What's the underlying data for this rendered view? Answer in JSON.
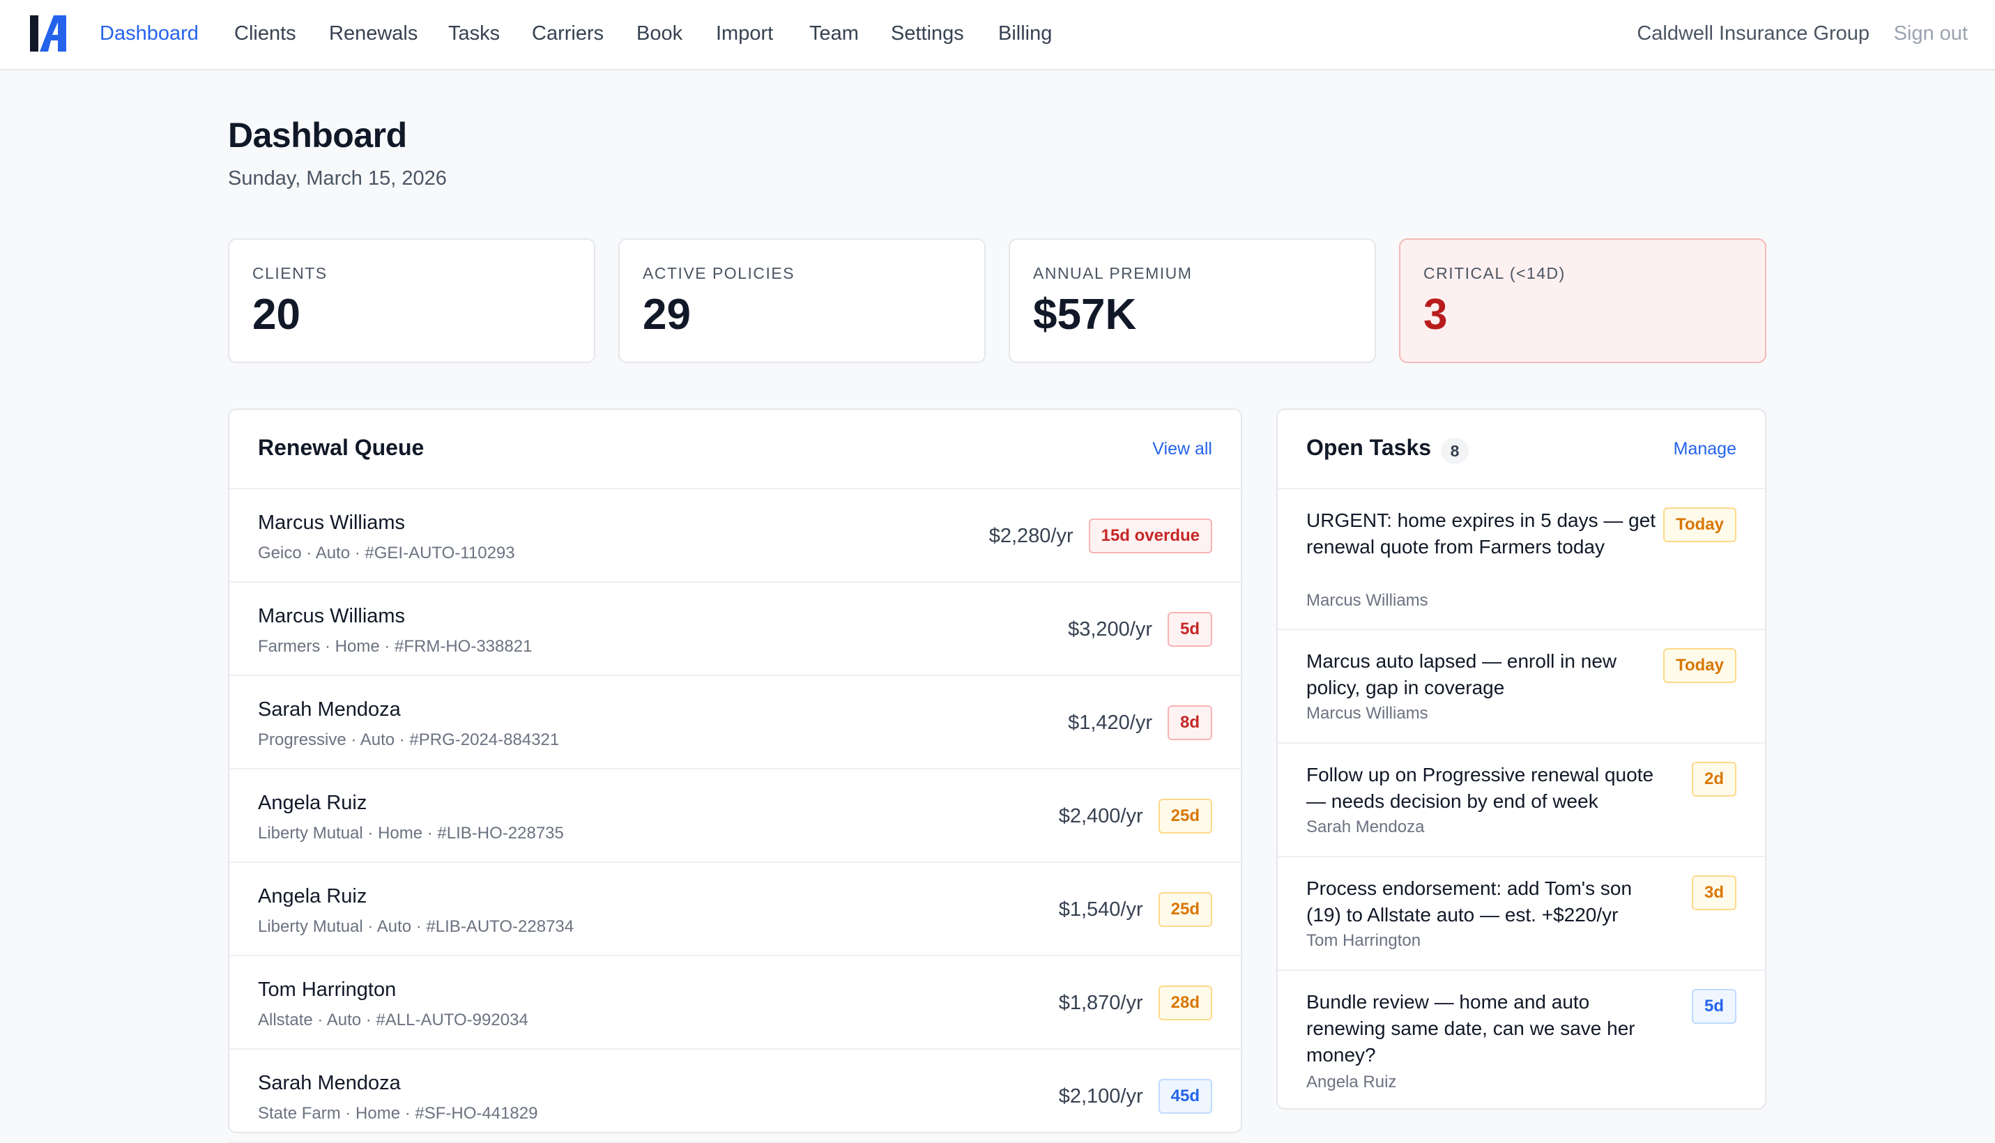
{
  "nav": {
    "items": [
      {
        "label": "Dashboard",
        "active": true
      },
      {
        "label": "Clients"
      },
      {
        "label": "Renewals"
      },
      {
        "label": "Tasks"
      },
      {
        "label": "Carriers"
      },
      {
        "label": "Book"
      },
      {
        "label": "Import"
      },
      {
        "label": "Team"
      },
      {
        "label": "Settings"
      },
      {
        "label": "Billing"
      }
    ],
    "org_name": "Caldwell Insurance Group",
    "sign_out": "Sign out",
    "accent": "#2563eb",
    "logo_icon": "logo-icon"
  },
  "page": {
    "title": "Dashboard",
    "date": "Sunday, March 15, 2026"
  },
  "stats": [
    {
      "label": "CLIENTS",
      "value": "20"
    },
    {
      "label": "ACTIVE POLICIES",
      "value": "29"
    },
    {
      "label": "ANNUAL PREMIUM",
      "value": "$57K"
    },
    {
      "label": "CRITICAL (<14D)",
      "value": "3",
      "status_color": "#b91c1c"
    }
  ],
  "renewals": {
    "title": "Renewal Queue",
    "link": "View all",
    "rows": [
      {
        "name": "Marcus Williams",
        "meta": "Geico · Auto · #GEI-AUTO-110293",
        "premium": "$2,280/yr",
        "badge": "15d overdue",
        "tone": "red"
      },
      {
        "name": "Marcus Williams",
        "meta": "Farmers · Home · #FRM-HO-338821",
        "premium": "$3,200/yr",
        "badge": "5d",
        "tone": "red"
      },
      {
        "name": "Sarah Mendoza",
        "meta": "Progressive · Auto · #PRG-2024-884321",
        "premium": "$1,420/yr",
        "badge": "8d",
        "tone": "red"
      },
      {
        "name": "Angela Ruiz",
        "meta": "Liberty Mutual · Home · #LIB-HO-228735",
        "premium": "$2,400/yr",
        "badge": "25d",
        "tone": "amber"
      },
      {
        "name": "Angela Ruiz",
        "meta": "Liberty Mutual · Auto · #LIB-AUTO-228734",
        "premium": "$1,540/yr",
        "badge": "25d",
        "tone": "amber"
      },
      {
        "name": "Tom Harrington",
        "meta": "Allstate · Auto · #ALL-AUTO-992034",
        "premium": "$1,870/yr",
        "badge": "28d",
        "tone": "amber"
      },
      {
        "name": "Sarah Mendoza",
        "meta": "State Farm · Home · #SF-HO-441829",
        "premium": "$2,100/yr",
        "badge": "45d",
        "tone": "blue"
      }
    ]
  },
  "tasks": {
    "title": "Open Tasks",
    "count": "8",
    "link": "Manage",
    "rows": [
      {
        "text": "URGENT: home expires in 5 days — get renewal quote from Farmers today",
        "client": "Marcus Williams",
        "badge": "Today",
        "tone": "amber"
      },
      {
        "text": "Marcus auto lapsed — enroll in new policy, gap in coverage",
        "client": "Marcus Williams",
        "badge": "Today",
        "tone": "amber"
      },
      {
        "text": "Follow up on Progressive renewal quote — needs decision by end of week",
        "client": "Sarah Mendoza",
        "badge": "2d",
        "tone": "amber"
      },
      {
        "text": "Process endorsement: add Tom's son (19) to Allstate auto — est. +$220/yr",
        "client": "Tom Harrington",
        "badge": "3d",
        "tone": "amber"
      },
      {
        "text": "Bundle review — home and auto renewing same date, can we save her money?",
        "client": "Angela Ruiz",
        "badge": "5d",
        "tone": "blue"
      }
    ]
  }
}
